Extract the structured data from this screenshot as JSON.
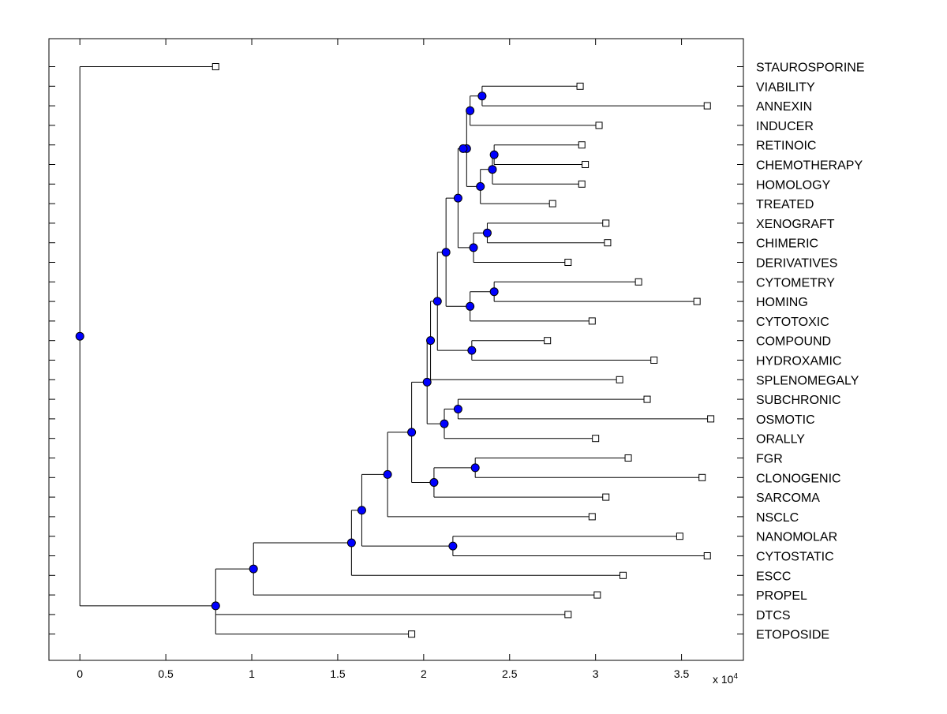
{
  "chart_data": {
    "type": "dendrogram",
    "title": "",
    "xlabel": "",
    "ylabel": "",
    "x_multiplier_label": {
      "base": "x 10",
      "exp": "4"
    },
    "xlim": [
      -0.18,
      3.86
    ],
    "x_ticks": [
      0,
      0.5,
      1,
      1.5,
      2,
      2.5,
      3,
      3.5
    ],
    "x_tick_labels": [
      "0",
      "0.5",
      "1",
      "1.5",
      "2",
      "2.5",
      "3",
      "3.5"
    ],
    "leaf_marker_color": "#ffffff",
    "node_marker_color": "#0000ff",
    "leaves": [
      {
        "label": "STAUROSPORINE",
        "x": 0.79
      },
      {
        "label": "VIABILITY",
        "x": 2.91
      },
      {
        "label": "ANNEXIN",
        "x": 3.65
      },
      {
        "label": "INDUCER",
        "x": 3.02
      },
      {
        "label": "RETINOIC",
        "x": 2.92
      },
      {
        "label": "CHEMOTHERAPY",
        "x": 2.94
      },
      {
        "label": "HOMOLOGY",
        "x": 2.92
      },
      {
        "label": "TREATED",
        "x": 2.75
      },
      {
        "label": "XENOGRAFT",
        "x": 3.06
      },
      {
        "label": "CHIMERIC",
        "x": 3.07
      },
      {
        "label": "DERIVATIVES",
        "x": 2.84
      },
      {
        "label": "CYTOMETRY",
        "x": 3.25
      },
      {
        "label": "HOMING",
        "x": 3.59
      },
      {
        "label": "CYTOTOXIC",
        "x": 2.98
      },
      {
        "label": "COMPOUND",
        "x": 2.72
      },
      {
        "label": "HYDROXAMIC",
        "x": 3.34
      },
      {
        "label": "SPLENOMEGALY",
        "x": 3.14
      },
      {
        "label": "SUBCHRONIC",
        "x": 3.3
      },
      {
        "label": "OSMOTIC",
        "x": 3.67
      },
      {
        "label": "ORALLY",
        "x": 3.0
      },
      {
        "label": "FGR",
        "x": 3.19
      },
      {
        "label": "CLONOGENIC",
        "x": 3.62
      },
      {
        "label": "SARCOMA",
        "x": 3.06
      },
      {
        "label": "NSCLC",
        "x": 2.98
      },
      {
        "label": "NANOMOLAR",
        "x": 3.49
      },
      {
        "label": "CYTOSTATIC",
        "x": 3.65
      },
      {
        "label": "ESCC",
        "x": 3.16
      },
      {
        "label": "PROPEL",
        "x": 3.01
      },
      {
        "label": "DTCS",
        "x": 2.84
      },
      {
        "label": "ETOPOSIDE",
        "x": 1.93
      }
    ],
    "nodes": [
      {
        "id": "n1",
        "x": 2.34,
        "children": [
          "L1",
          "L2"
        ]
      },
      {
        "id": "n2",
        "x": 2.27,
        "children": [
          "n1",
          "L3"
        ]
      },
      {
        "id": "n3",
        "x": 2.41,
        "children": [
          "L4",
          "L5"
        ]
      },
      {
        "id": "n4",
        "x": 2.4,
        "children": [
          "n3",
          "L6"
        ]
      },
      {
        "id": "n5",
        "x": 2.33,
        "children": [
          "n4",
          "L7"
        ]
      },
      {
        "id": "n6",
        "x": 2.25,
        "children": [
          "n2",
          "n5"
        ]
      },
      {
        "id": "n7",
        "x": 2.23,
        "children": [
          "n6"
        ]
      },
      {
        "id": "n8",
        "x": 2.37,
        "children": [
          "L8",
          "L9"
        ]
      },
      {
        "id": "n9",
        "x": 2.29,
        "children": [
          "n8",
          "L10"
        ]
      },
      {
        "id": "n10",
        "x": 2.2,
        "children": [
          "n7",
          "n9"
        ]
      },
      {
        "id": "n11",
        "x": 2.41,
        "children": [
          "L11",
          "L12"
        ]
      },
      {
        "id": "n12",
        "x": 2.27,
        "children": [
          "n11",
          "L13"
        ]
      },
      {
        "id": "n13",
        "x": 2.13,
        "children": [
          "n10",
          "n12"
        ]
      },
      {
        "id": "n14",
        "x": 2.28,
        "children": [
          "L14",
          "L15"
        ]
      },
      {
        "id": "n15",
        "x": 2.08,
        "children": [
          "n13",
          "n14"
        ]
      },
      {
        "id": "n16",
        "x": 2.04,
        "children": [
          "n15",
          "L16"
        ]
      },
      {
        "id": "n17",
        "x": 2.2,
        "children": [
          "L17",
          "L18"
        ]
      },
      {
        "id": "n18",
        "x": 2.12,
        "children": [
          "n17",
          "L19"
        ]
      },
      {
        "id": "n19",
        "x": 2.02,
        "children": [
          "n16",
          "n18"
        ]
      },
      {
        "id": "n20",
        "x": 2.3,
        "children": [
          "L20",
          "L21"
        ]
      },
      {
        "id": "n21",
        "x": 2.06,
        "children": [
          "n20",
          "L22"
        ]
      },
      {
        "id": "n22",
        "x": 1.93,
        "children": [
          "n19",
          "n21"
        ]
      },
      {
        "id": "n23",
        "x": 1.79,
        "children": [
          "n22",
          "L23"
        ]
      },
      {
        "id": "n24",
        "x": 2.17,
        "children": [
          "L24",
          "L25"
        ]
      },
      {
        "id": "n25",
        "x": 1.64,
        "children": [
          "n23",
          "n24"
        ]
      },
      {
        "id": "n26",
        "x": 1.58,
        "children": [
          "n25",
          "L26"
        ]
      },
      {
        "id": "n27",
        "x": 1.01,
        "children": [
          "n26",
          "L27"
        ]
      },
      {
        "id": "n28",
        "x": 0.79,
        "children": [
          "n27",
          "L28",
          "L29"
        ]
      },
      {
        "id": "n29",
        "x": 0.0,
        "children": [
          "L0",
          "n28"
        ]
      }
    ]
  }
}
